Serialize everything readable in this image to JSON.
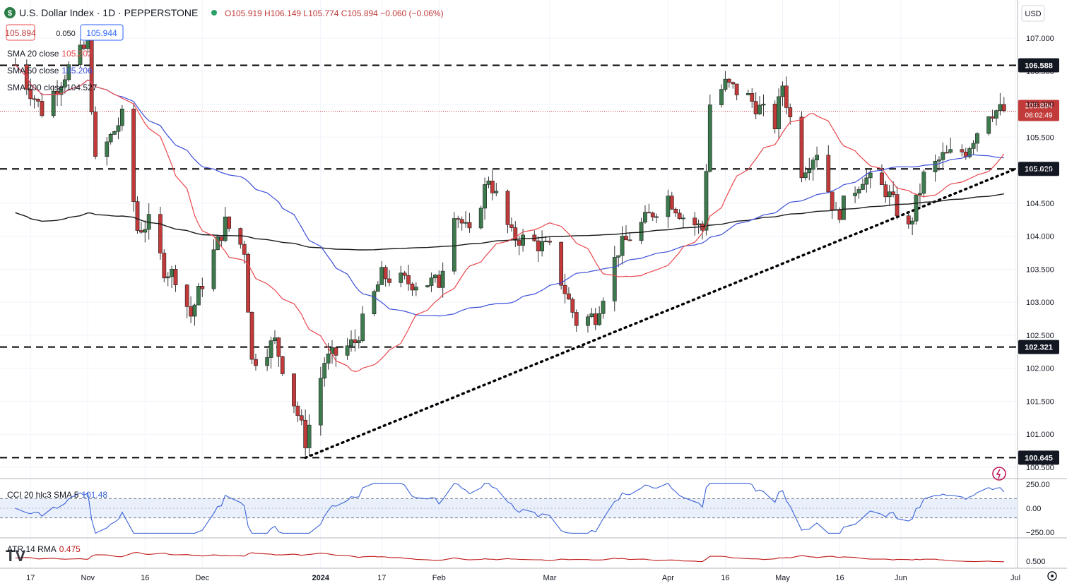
{
  "header": {
    "symbol_title": "U.S. Dollar Index · 1D · PEPPERSTONE",
    "ohlc": "O105.919 H106.149 L105.774 C105.894 −0.060 (−0.06%)",
    "bid": "105.894",
    "spread": "0.050",
    "ask": "105.944"
  },
  "indicators": {
    "sma20": "SMA 20 close",
    "sma20_value": "105.202",
    "sma50": "SMA 50 close",
    "sma50_value": "105.206",
    "sma200": "SMA 200 close",
    "sma200_value": "104.527",
    "cci": "CCI 20 hlc3 SMA 5",
    "cci_value": "101.48",
    "atr": "ATR 14 RMA",
    "atr_value": "0.475"
  },
  "currency": "USD",
  "countdown": "08:02:49",
  "colors": {
    "up": "#3d7a4d",
    "down": "#c23a3a",
    "sma20": "#e8474d",
    "sma50": "#3b4fd8",
    "sma200": "#1a1a1a",
    "cci": "#3b62d8",
    "atr": "#c01919",
    "level_badge": "#131722"
  },
  "chart_data": {
    "type": "candlestick",
    "symbol": "US Dollar Index",
    "timeframe": "1D",
    "y_ticks": [
      "107.000",
      "106.500",
      "106.000",
      "105.500",
      "105.000",
      "104.500",
      "104.000",
      "103.500",
      "103.000",
      "102.500",
      "102.000",
      "101.500",
      "101.000",
      "100.500"
    ],
    "x_ticks": [
      "17",
      "Nov",
      "16",
      "Dec",
      "2024",
      "17",
      "Feb",
      "Mar",
      "Apr",
      "16",
      "May",
      "16",
      "Jun",
      "Jul"
    ],
    "levels": [
      {
        "value": 106.588,
        "label": "106.588"
      },
      {
        "value": 105.02,
        "label": "105.020"
      },
      {
        "value": 102.321,
        "label": "102.321"
      },
      {
        "value": 100.645,
        "label": "100.645"
      }
    ],
    "last_price": 105.894,
    "ylim": [
      100.5,
      107.3
    ],
    "cci_ticks": [
      "250.00",
      "0.00",
      "−250.00"
    ],
    "atr_ticks": [
      "0.500"
    ],
    "close_path": [
      [
        "2023-10-13",
        106.6
      ],
      [
        "2023-10-20",
        105.9
      ],
      [
        "2023-10-27",
        106.55
      ],
      [
        "2023-11-01",
        106.9
      ],
      [
        "2023-11-03",
        105.1
      ],
      [
        "2023-11-10",
        105.8
      ],
      [
        "2023-11-14",
        104.1
      ],
      [
        "2023-11-17",
        104.2
      ],
      [
        "2023-11-21",
        103.5
      ],
      [
        "2023-11-24",
        103.4
      ],
      [
        "2023-11-28",
        102.8
      ],
      [
        "2023-12-01",
        103.3
      ],
      [
        "2023-12-07",
        104.2
      ],
      [
        "2023-12-12",
        103.8
      ],
      [
        "2023-12-14",
        102.1
      ],
      [
        "2023-12-20",
        102.4
      ],
      [
        "2023-12-26",
        101.3
      ],
      [
        "2023-12-28",
        100.9
      ],
      [
        "2024-01-02",
        102.1
      ],
      [
        "2024-01-10",
        102.4
      ],
      [
        "2024-01-17",
        103.4
      ],
      [
        "2024-01-24",
        103.3
      ],
      [
        "2024-02-01",
        103.3
      ],
      [
        "2024-02-05",
        104.4
      ],
      [
        "2024-02-09",
        104.0
      ],
      [
        "2024-02-14",
        104.9
      ],
      [
        "2024-02-20",
        104.0
      ],
      [
        "2024-02-26",
        103.9
      ],
      [
        "2024-03-01",
        103.8
      ],
      [
        "2024-03-08",
        102.7
      ],
      [
        "2024-03-13",
        102.8
      ],
      [
        "2024-03-19",
        103.8
      ],
      [
        "2024-03-27",
        104.3
      ],
      [
        "2024-04-01",
        104.6
      ],
      [
        "2024-04-05",
        104.3
      ],
      [
        "2024-04-10",
        104.1
      ],
      [
        "2024-04-12",
        106.0
      ],
      [
        "2024-04-16",
        106.3
      ],
      [
        "2024-04-22",
        106.1
      ],
      [
        "2024-04-29",
        105.7
      ],
      [
        "2024-05-01",
        106.3
      ],
      [
        "2024-05-06",
        105.0
      ],
      [
        "2024-05-10",
        105.3
      ],
      [
        "2024-05-15",
        104.3
      ],
      [
        "2024-05-22",
        104.9
      ],
      [
        "2024-05-28",
        104.7
      ],
      [
        "2024-06-03",
        104.1
      ],
      [
        "2024-06-07",
        104.9
      ],
      [
        "2024-06-12",
        105.2
      ],
      [
        "2024-06-18",
        105.3
      ],
      [
        "2024-06-24",
        105.9
      ],
      [
        "2024-06-28",
        105.9
      ]
    ]
  }
}
